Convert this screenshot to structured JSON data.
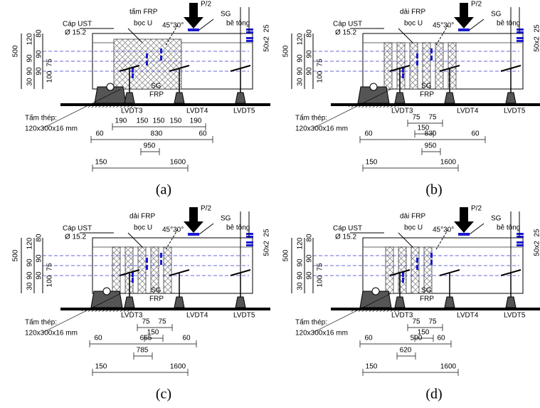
{
  "panels": [
    {
      "caption": "(a)",
      "cable": [
        "Cáp UST",
        "Ø 15.2"
      ],
      "frp": [
        "tấm FRP",
        "bọc U"
      ],
      "load": "P/2",
      "sg_concrete": [
        "SG",
        "bê tông"
      ],
      "angle": "45°30°",
      "left_dims": [
        "500",
        "120",
        "90",
        "90",
        "30",
        "80",
        "90",
        "90",
        "100",
        "75"
      ],
      "right_dims": [
        "50x2",
        "25"
      ],
      "sg_frp": [
        "SG",
        "FRP"
      ],
      "lvdt": [
        "LVDT3",
        "LVDT4",
        "LVDT5"
      ],
      "plate": [
        "Tấm thép:",
        "120x300x16 mm"
      ],
      "dim_rows": [
        [
          "190",
          "150",
          "150",
          "150",
          "190"
        ],
        [
          "60",
          "830",
          "60"
        ],
        [
          "950"
        ],
        [
          "150",
          "1600"
        ]
      ]
    },
    {
      "caption": "(b)",
      "cable": [
        "Cáp UST",
        "Ø 15.2"
      ],
      "frp": [
        "dải FRP",
        "bọc U"
      ],
      "load": "P/2",
      "sg_concrete": [
        "SG",
        "bê tông"
      ],
      "angle": "45°30°",
      "left_dims": [
        "500",
        "120",
        "90",
        "90",
        "30",
        "80",
        "90",
        "90",
        "100",
        "75"
      ],
      "right_dims": [
        "50x2",
        "25"
      ],
      "sg_frp": [
        "SG",
        "FRP"
      ],
      "lvdt": [
        "LVDT3",
        "LVDT4",
        "LVDT5"
      ],
      "plate": [
        "Tấm thép:",
        "120x300x16 mm"
      ],
      "dim_rows": [
        [
          "75",
          "75"
        ],
        [
          "150"
        ],
        [
          "60",
          "830",
          "60"
        ],
        [
          "950"
        ],
        [
          "150",
          "1600"
        ]
      ]
    },
    {
      "caption": "(c)",
      "cable": [
        "Cáp UST",
        "Ø 15.2"
      ],
      "frp": [
        "dải FRP",
        "bọc U"
      ],
      "load": "P/2",
      "sg_concrete": [
        "SG",
        "bê tông"
      ],
      "angle": "45°30°",
      "left_dims": [
        "500",
        "120",
        "90",
        "90",
        "30",
        "80",
        "90",
        "90",
        "100",
        "75"
      ],
      "right_dims": [
        "50x2",
        "25"
      ],
      "sg_frp": [
        "SG",
        "FRP"
      ],
      "lvdt": [
        "LVDT3",
        "LVDT4",
        "LVDT5"
      ],
      "plate": [
        "Tấm thép:",
        "120x300x16 mm"
      ],
      "dim_rows": [
        [
          "75",
          "75"
        ],
        [
          "150"
        ],
        [
          "60",
          "665",
          "60"
        ],
        [
          "785"
        ],
        [
          "150",
          "1600"
        ]
      ]
    },
    {
      "caption": "(d)",
      "cable": [
        "Cáp UST",
        "Ø 15.2"
      ],
      "frp": [
        "dải FRP",
        "bọc U"
      ],
      "load": "P/2",
      "sg_concrete": [
        "SG",
        "bê tông"
      ],
      "angle": "45°30°",
      "left_dims": [
        "500",
        "120",
        "90",
        "90",
        "30",
        "80",
        "90",
        "90",
        "100",
        "75"
      ],
      "right_dims": [
        "50x2",
        "25"
      ],
      "sg_frp": [
        "SG",
        "FRP"
      ],
      "lvdt": [
        "LVDT3",
        "LVDT4",
        "LVDT5"
      ],
      "plate": [
        "Tấm thép:",
        "120x300x16 mm"
      ],
      "dim_rows": [
        [
          "75",
          "75"
        ],
        [
          "150"
        ],
        [
          "60",
          "500",
          "60"
        ],
        [
          "620"
        ],
        [
          "150",
          "1600"
        ]
      ]
    }
  ]
}
